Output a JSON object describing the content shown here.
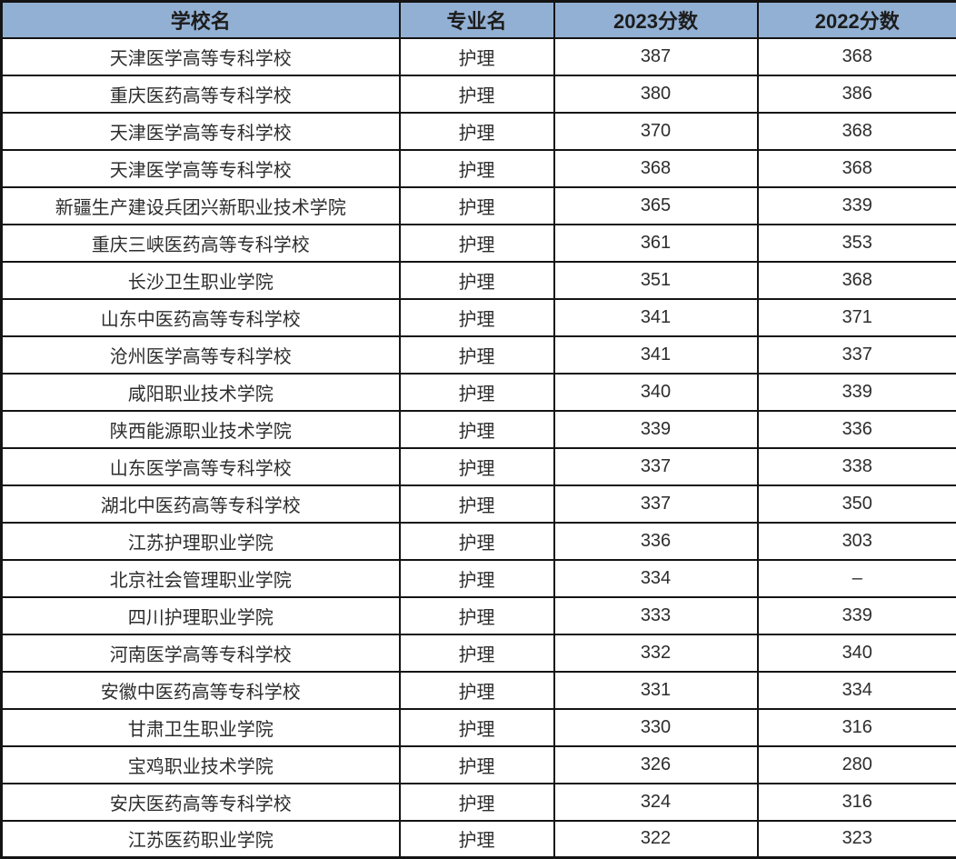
{
  "colors": {
    "header_bg": "#92B0D3",
    "border": "#141414",
    "header_text": "#1c1c1c",
    "body_text": "#2d2d2d",
    "body_bg": "#ffffff"
  },
  "chart_data": {
    "type": "table",
    "columns": [
      "学校名",
      "专业名",
      "2023分数",
      "2022分数"
    ],
    "rows": [
      [
        "天津医学高等专科学校",
        "护理",
        "387",
        "368"
      ],
      [
        "重庆医药高等专科学校",
        "护理",
        "380",
        "386"
      ],
      [
        "天津医学高等专科学校",
        "护理",
        "370",
        "368"
      ],
      [
        "天津医学高等专科学校",
        "护理",
        "368",
        "368"
      ],
      [
        "新疆生产建设兵团兴新职业技术学院",
        "护理",
        "365",
        "339"
      ],
      [
        "重庆三峡医药高等专科学校",
        "护理",
        "361",
        "353"
      ],
      [
        "长沙卫生职业学院",
        "护理",
        "351",
        "368"
      ],
      [
        "山东中医药高等专科学校",
        "护理",
        "341",
        "371"
      ],
      [
        "沧州医学高等专科学校",
        "护理",
        "341",
        "337"
      ],
      [
        "咸阳职业技术学院",
        "护理",
        "340",
        "339"
      ],
      [
        "陕西能源职业技术学院",
        "护理",
        "339",
        "336"
      ],
      [
        "山东医学高等专科学校",
        "护理",
        "337",
        "338"
      ],
      [
        "湖北中医药高等专科学校",
        "护理",
        "337",
        "350"
      ],
      [
        "江苏护理职业学院",
        "护理",
        "336",
        "303"
      ],
      [
        "北京社会管理职业学院",
        "护理",
        "334",
        "–"
      ],
      [
        "四川护理职业学院",
        "护理",
        "333",
        "339"
      ],
      [
        "河南医学高等专科学校",
        "护理",
        "332",
        "340"
      ],
      [
        "安徽中医药高等专科学校",
        "护理",
        "331",
        "334"
      ],
      [
        "甘肃卫生职业学院",
        "护理",
        "330",
        "316"
      ],
      [
        "宝鸡职业技术学院",
        "护理",
        "326",
        "280"
      ],
      [
        "安庆医药高等专科学校",
        "护理",
        "324",
        "316"
      ],
      [
        "江苏医药职业学院",
        "护理",
        "322",
        "323"
      ]
    ]
  }
}
